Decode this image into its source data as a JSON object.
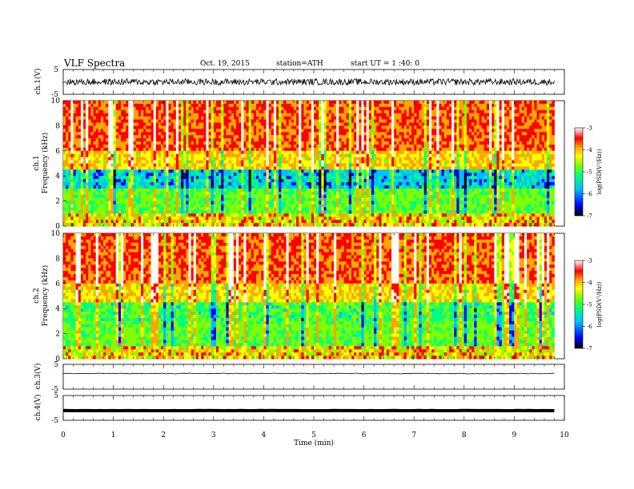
{
  "header": {
    "title": "VLF Spectra",
    "date": "Oct. 19, 2015",
    "station": "station=ATH",
    "start": "start UT = 1 :40: 0"
  },
  "chart_data": [
    {
      "type": "line",
      "panel": "ch1-waveform",
      "ylabel": "ch.1(V)",
      "ylim": [
        -5,
        5
      ],
      "yticks": [
        "5",
        "-5"
      ],
      "xlim": [
        0,
        10
      ],
      "data_end_min": 9.8,
      "level": 0,
      "amplitude": 1.3
    },
    {
      "type": "heatmap",
      "panel": "ch1-spectrogram",
      "ylabel_channel": "ch.1",
      "ylabel": "Frequency (kHz)",
      "ylim": [
        0,
        10
      ],
      "yticks": [
        "0",
        "2",
        "4",
        "6",
        "8",
        "10"
      ],
      "xlim": [
        0,
        10
      ],
      "data_end_min": 9.8,
      "colorbar": {
        "label": "log(PSD(V²/Hz))",
        "range": [
          -7,
          -3
        ],
        "ticks": [
          "-3",
          "-4",
          "-5",
          "-6",
          "-7"
        ]
      }
    },
    {
      "type": "heatmap",
      "panel": "ch2-spectrogram",
      "ylabel_channel": "ch.2",
      "ylabel": "Frequency (kHz)",
      "ylim": [
        0,
        10
      ],
      "yticks": [
        "0",
        "2",
        "4",
        "6",
        "8",
        "10"
      ],
      "xlim": [
        0,
        10
      ],
      "data_end_min": 9.8,
      "colorbar": {
        "label": "log(PSD(V²/Hz))",
        "range": [
          -7,
          -3
        ],
        "ticks": [
          "-3",
          "-4",
          "-5",
          "-6",
          "-7"
        ]
      }
    },
    {
      "type": "line",
      "panel": "ch3-waveform",
      "ylabel": "ch.3(V)",
      "ylim": [
        -5,
        5
      ],
      "yticks": [
        "5",
        "-5"
      ],
      "xlim": [
        0,
        10
      ],
      "data_end_min": 9.8,
      "level": 1.3,
      "amplitude": 0.15
    },
    {
      "type": "line",
      "panel": "ch4-waveform",
      "ylabel": "ch.4(V)",
      "ylim": [
        -5,
        5
      ],
      "yticks": [
        "5",
        "-5"
      ],
      "xlim": [
        0,
        10
      ],
      "data_end_min": 9.8,
      "level": -1.1,
      "amplitude": 0.05
    }
  ],
  "xaxis": {
    "label": "Time (min)",
    "ticks": [
      "0",
      "1",
      "2",
      "3",
      "4",
      "5",
      "6",
      "7",
      "8",
      "9",
      "10"
    ]
  },
  "colors": {
    "colormap": [
      "#000000",
      "#0000ff",
      "#00bfff",
      "#00ff7f",
      "#7fff00",
      "#ffff00",
      "#ffa500",
      "#ff0000",
      "#ffffff"
    ]
  }
}
